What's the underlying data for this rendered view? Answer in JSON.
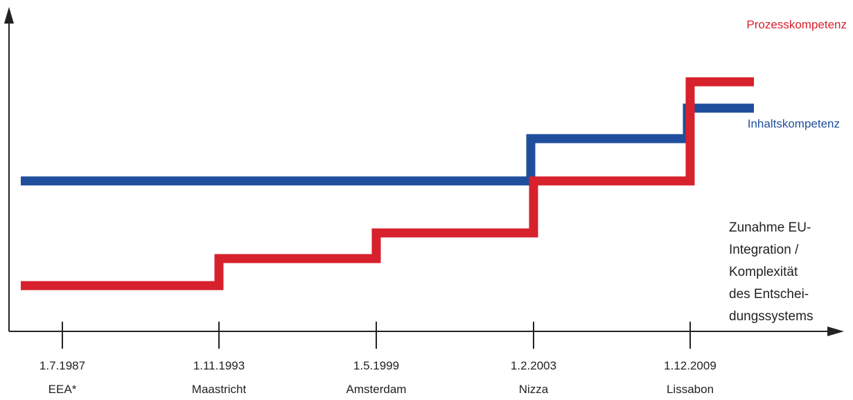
{
  "chart_data": {
    "type": "line",
    "step": true,
    "x_ticks": [
      {
        "date": "1.7.1987",
        "treaty": "EEA*"
      },
      {
        "date": "1.11.1993",
        "treaty": "Maastricht"
      },
      {
        "date": "1.5.1999",
        "treaty": "Amsterdam"
      },
      {
        "date": "1.2.2003",
        "treaty": "Nizza"
      },
      {
        "date": "1.12.2009",
        "treaty": "Lissabon"
      }
    ],
    "ylabel": "Zunahme EU-Integration / Komplexität des Entscheidungssystems",
    "ylabel_lines": [
      "Zunahme EU-",
      "Integration /",
      "Komplexität",
      "des Entschei-",
      "dungssystems"
    ],
    "y_ticks_shown": false,
    "grid": false,
    "series": [
      {
        "name": "Prozesskompetenz",
        "color": "#d7212d",
        "steps": [
          {
            "from": "1.7.1987",
            "level": 1
          },
          {
            "from": "1.11.1993",
            "level": 2
          },
          {
            "from": "1.5.1999",
            "level": 3
          },
          {
            "from": "1.2.2003",
            "level": 4
          },
          {
            "from": "1.12.2009",
            "level": 6
          }
        ]
      },
      {
        "name": "Inhaltskompetenz",
        "color": "#1f4e9c",
        "steps": [
          {
            "from": "1.7.1987",
            "level": 4
          },
          {
            "from": "1.2.2003",
            "level": 5.2
          },
          {
            "from": "1.12.2009",
            "level": 5.8
          }
        ]
      }
    ]
  }
}
